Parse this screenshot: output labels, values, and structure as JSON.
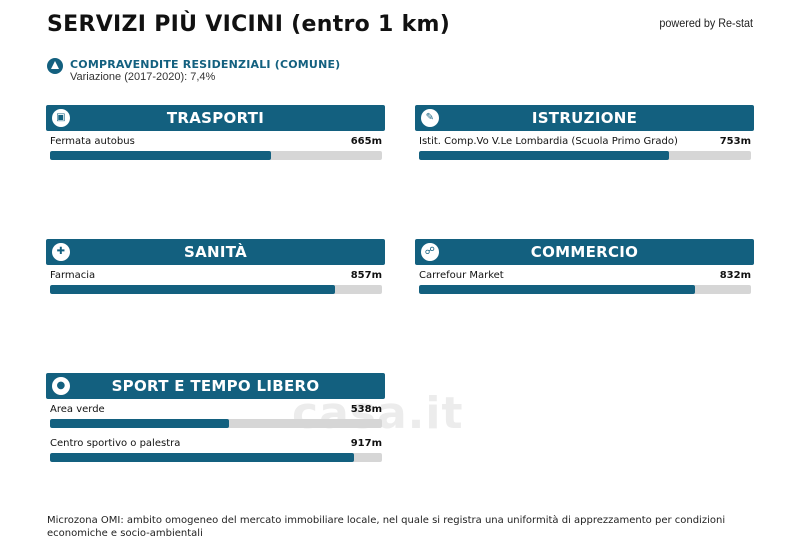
{
  "header": {
    "title": "SERVIZI PIÙ VICINI (entro 1 km)",
    "powered": "powered by Re-stat"
  },
  "trend": {
    "label": "COMPRAVENDITE RESIDENZIALI (COMUNE)",
    "sub": "Variazione (2017-2020): 7,4%",
    "icon": "triangle-up-icon"
  },
  "categories": [
    {
      "title": "TRASPORTI",
      "icon": "bus-icon",
      "items": [
        {
          "name": "Fermata autobus",
          "dist": "665m",
          "fill": 0.665
        }
      ]
    },
    {
      "title": "ISTRUZIONE",
      "icon": "school-icon",
      "items": [
        {
          "name": "Istit. Comp.Vo V.Le Lombardia (Scuola Primo Grado)",
          "dist": "753m",
          "fill": 0.753
        }
      ]
    },
    {
      "title": "SANITÀ",
      "icon": "pharmacy-icon",
      "items": [
        {
          "name": "Farmacia",
          "dist": "857m",
          "fill": 0.857
        }
      ]
    },
    {
      "title": "COMMERCIO",
      "icon": "cart-icon",
      "items": [
        {
          "name": "Carrefour Market",
          "dist": "832m",
          "fill": 0.832
        }
      ]
    },
    {
      "title": "SPORT E TEMPO LIBERO",
      "icon": "tennis-icon",
      "items": [
        {
          "name": "Area verde",
          "dist": "538m",
          "fill": 0.538
        },
        {
          "name": "Centro sportivo o palestra",
          "dist": "917m",
          "fill": 0.917
        }
      ]
    }
  ],
  "footnote": "Microzona OMI: ambito omogeneo del mercato immobiliare locale, nel quale si registra una uniformità di apprezzamento per condizioni economiche e socio-ambientali",
  "watermark": "casa.it",
  "colors": {
    "accent": "#13607f",
    "track": "#d6d6d6"
  }
}
